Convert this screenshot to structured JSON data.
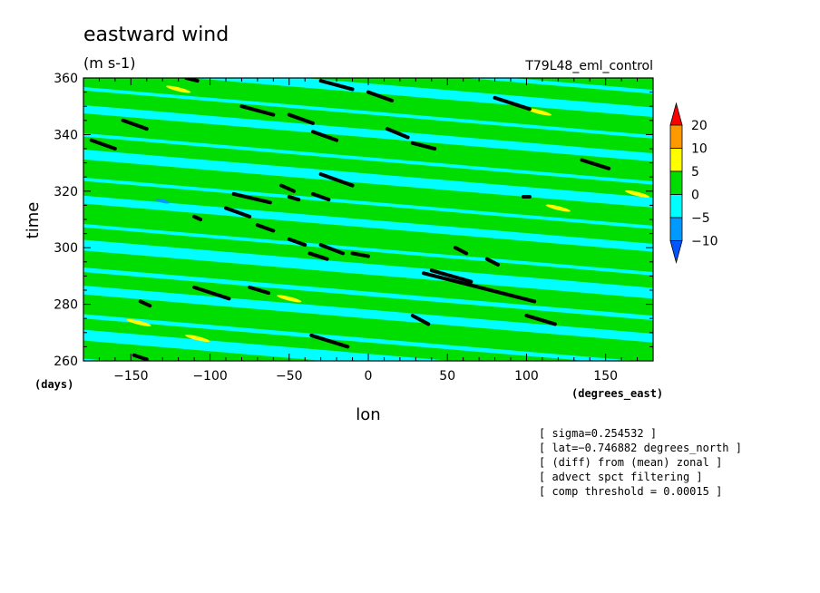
{
  "chart_data": {
    "type": "heatmap",
    "title": "eastward wind",
    "units": "(m s-1)",
    "experiment": "T79L48_eml_control",
    "xlabel": "lon",
    "ylabel": "time",
    "x_units": "(degrees_east)",
    "y_units": "(days)",
    "xlim": [
      -180,
      180
    ],
    "ylim": [
      260,
      360
    ],
    "x_ticks": [
      -150,
      -100,
      -50,
      0,
      50,
      100,
      150
    ],
    "y_ticks": [
      260,
      280,
      300,
      320,
      340,
      360
    ],
    "x_tick_labels": [
      "−150",
      "−100",
      "−50",
      "0",
      "50",
      "100",
      "150"
    ],
    "y_tick_labels": [
      "260",
      "280",
      "300",
      "320",
      "340",
      "360"
    ],
    "colorbar": {
      "levels": [
        "20",
        "10",
        "5",
        "0",
        "−5",
        "−10"
      ],
      "colors": [
        "#ff0000",
        "#ff9900",
        "#ffff00",
        "#00dd00",
        "#00ffff",
        "#0099ff",
        "#0055ff"
      ]
    },
    "background_color": "#00ffff",
    "positive_color": "#00dd00",
    "black_segments": [
      [
        -148,
        262,
        -140,
        260.5
      ],
      [
        -144,
        281,
        -138,
        279.5
      ],
      [
        -110,
        286,
        -88,
        282
      ],
      [
        -75,
        286,
        -63,
        284
      ],
      [
        -36,
        269,
        -13,
        265
      ],
      [
        28,
        276,
        38,
        273
      ],
      [
        -90,
        314,
        -75,
        311
      ],
      [
        -85,
        319,
        -62,
        316
      ],
      [
        -70,
        308,
        -60,
        306
      ],
      [
        -50,
        303,
        -40,
        301
      ],
      [
        -30,
        301,
        -16,
        298
      ],
      [
        -37,
        298,
        -26,
        296
      ],
      [
        -10,
        298,
        0,
        297
      ],
      [
        35,
        291,
        105,
        281
      ],
      [
        40,
        292,
        65,
        288
      ],
      [
        55,
        300,
        62,
        298
      ],
      [
        75,
        296,
        82,
        294
      ],
      [
        100,
        276,
        118,
        273
      ],
      [
        -55,
        322,
        -47,
        320
      ],
      [
        -35,
        319,
        -25,
        317
      ],
      [
        -30,
        326,
        -10,
        322
      ],
      [
        -175,
        338,
        -160,
        335
      ],
      [
        -155,
        345,
        -140,
        342
      ],
      [
        -80,
        350,
        -60,
        347
      ],
      [
        -50,
        347,
        -35,
        344
      ],
      [
        -35,
        341,
        -20,
        338
      ],
      [
        -30,
        359,
        -10,
        356
      ],
      [
        0,
        355,
        15,
        352
      ],
      [
        12,
        342,
        25,
        339
      ],
      [
        28,
        337,
        42,
        335
      ],
      [
        80,
        353,
        102,
        349
      ],
      [
        135,
        331,
        152,
        328
      ],
      [
        -115,
        360,
        -108,
        359
      ],
      [
        -110,
        311,
        -106,
        310
      ],
      [
        98,
        318,
        102,
        318
      ],
      [
        -50,
        318,
        -44,
        317
      ]
    ],
    "positive_bands": [
      {
        "lon_a": -180,
        "time_a": 264,
        "lon_b": 180,
        "time_b": 247,
        "half_width": 3.2
      },
      {
        "lon_a": -180,
        "time_a": 273,
        "lon_b": 180,
        "time_b": 256,
        "half_width": 2.0
      },
      {
        "lon_a": -180,
        "time_a": 280,
        "lon_b": 180,
        "time_b": 263,
        "half_width": 3.5
      },
      {
        "lon_a": -180,
        "time_a": 289,
        "lon_b": 180,
        "time_b": 272,
        "half_width": 2.4
      },
      {
        "lon_a": -180,
        "time_a": 296,
        "lon_b": 180,
        "time_b": 279,
        "half_width": 3.0
      },
      {
        "lon_a": -180,
        "time_a": 305,
        "lon_b": 180,
        "time_b": 288,
        "half_width": 2.2
      },
      {
        "lon_a": -180,
        "time_a": 312,
        "lon_b": 180,
        "time_b": 295,
        "half_width": 3.6
      },
      {
        "lon_a": -180,
        "time_a": 321,
        "lon_b": 180,
        "time_b": 304,
        "half_width": 2.6
      },
      {
        "lon_a": -180,
        "time_a": 328,
        "lon_b": 180,
        "time_b": 311,
        "half_width": 3.2
      },
      {
        "lon_a": -180,
        "time_a": 337,
        "lon_b": 180,
        "time_b": 320,
        "half_width": 2.3
      },
      {
        "lon_a": -180,
        "time_a": 344,
        "lon_b": 180,
        "time_b": 327,
        "half_width": 3.5
      },
      {
        "lon_a": -180,
        "time_a": 353,
        "lon_b": 180,
        "time_b": 336,
        "half_width": 2.6
      },
      {
        "lon_a": -180,
        "time_a": 360,
        "lon_b": 180,
        "time_b": 343,
        "half_width": 3.2
      },
      {
        "lon_a": -180,
        "time_a": 369,
        "lon_b": 180,
        "time_b": 352,
        "half_width": 2.4
      },
      {
        "lon_a": -180,
        "time_a": 376,
        "lon_b": 180,
        "time_b": 359,
        "half_width": 3.2
      }
    ],
    "yellow_patches": [
      [
        -145,
        273.5
      ],
      [
        -50,
        282
      ],
      [
        -120,
        356
      ],
      [
        -108,
        268
      ],
      [
        108,
        348
      ],
      [
        170,
        319
      ],
      [
        120,
        314
      ]
    ],
    "blue_patches": [
      [
        -130,
        316.5
      ]
    ],
    "legend_position": "right",
    "grid": false
  },
  "annotations": [
    "[ sigma=0.254532 ]",
    "[ lat=−0.746882 degrees_north ]",
    "[ (diff) from (mean) zonal ]",
    "[ advect spct filtering ]",
    "[ comp threshold = 0.00015 ]"
  ]
}
